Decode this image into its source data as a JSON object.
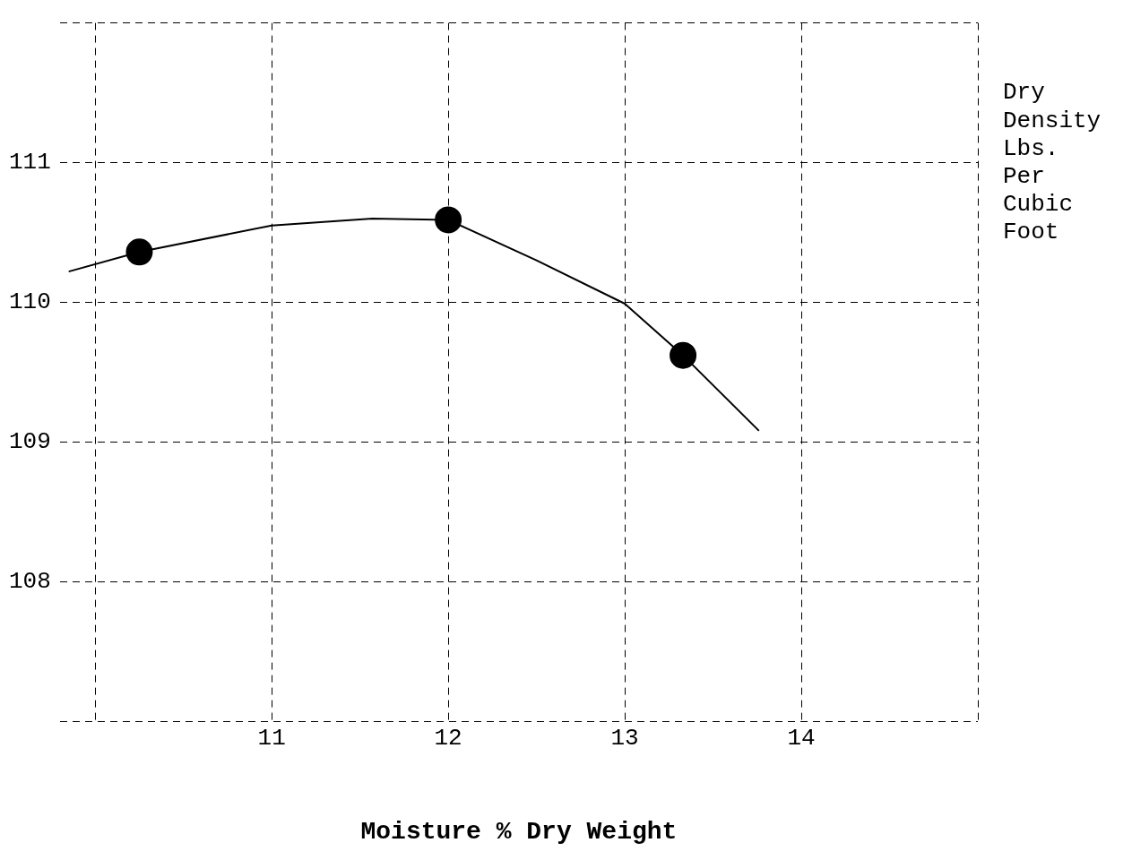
{
  "chart_data": {
    "type": "scatter",
    "xlabel": "Moisture % Dry Weight",
    "ylabel": "Dry Density Lbs. Per Cubic Foot",
    "xlim": [
      9.8,
      15
    ],
    "ylim": [
      107,
      112
    ],
    "xticks": [
      {
        "value": 10,
        "label": null
      },
      11,
      12,
      13,
      14,
      {
        "value": 15,
        "label": null
      }
    ],
    "yticks": [
      {
        "value": 107,
        "label": null
      },
      108,
      109,
      110,
      111,
      {
        "value": 112,
        "label": null
      }
    ],
    "grid": true,
    "line_style": "dashed",
    "legend": false,
    "series": [
      {
        "type": "line",
        "color": "#000000",
        "marker": "none",
        "line_style": "solid",
        "x": [
          9.85,
          10.25,
          11,
          11.57,
          12,
          12.5,
          13,
          13.33,
          13.76
        ],
        "values": [
          110.22,
          110.36,
          110.55,
          110.6,
          110.59,
          110.3,
          109.99,
          109.62,
          109.08
        ]
      },
      {
        "color": "#000000",
        "marker": "circle",
        "x": [
          10.25,
          12,
          13.33
        ],
        "values": [
          110.36,
          110.59,
          109.62
        ]
      }
    ]
  }
}
